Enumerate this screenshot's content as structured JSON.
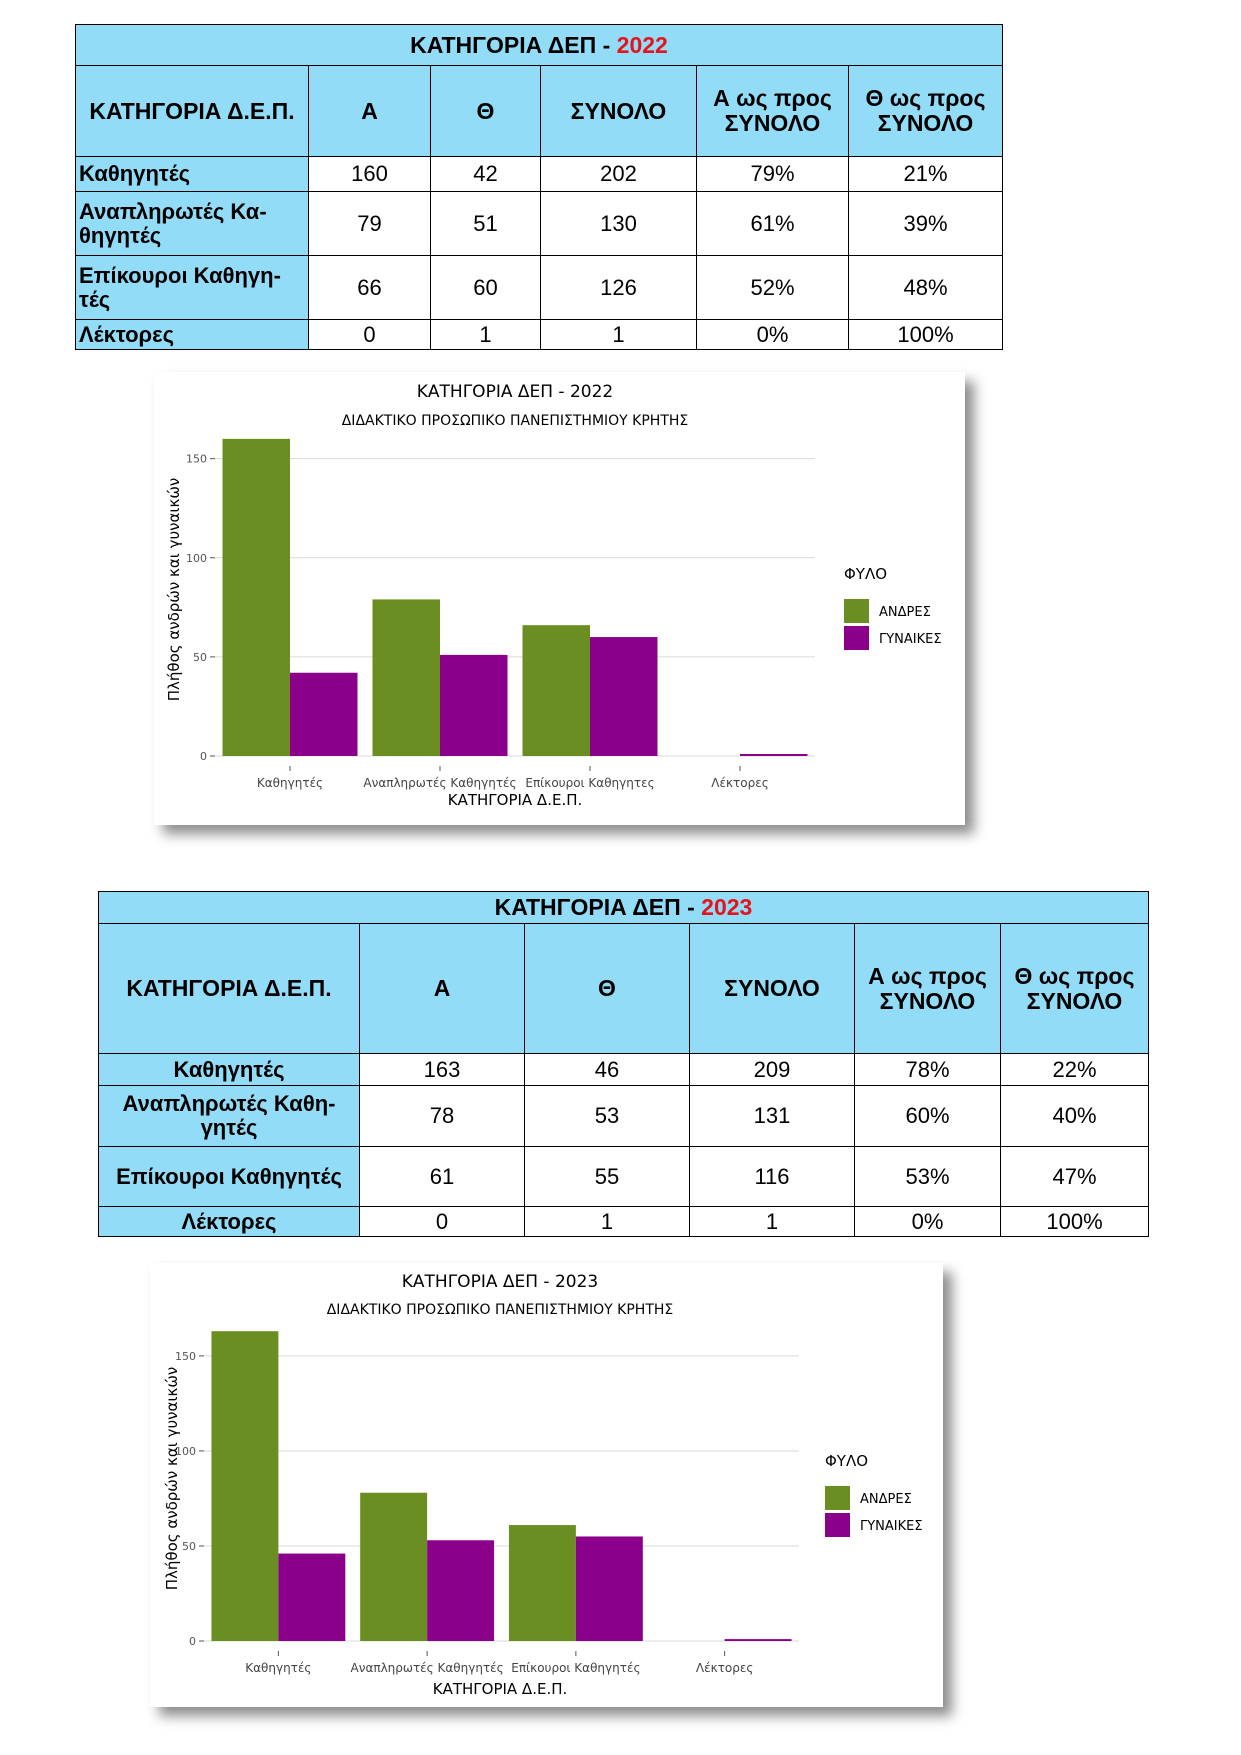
{
  "tables": [
    {
      "title_prefix": "ΚΑΤΗΓΟΡΙΑ ΔΕΠ  - ",
      "title_year": "2022",
      "year_color": "#e3141b",
      "header_bg": "#92dcf7",
      "headers": [
        "ΚΑΤΗΓΟΡΙΑ Δ.Ε.Π.",
        "Α",
        "Θ",
        "ΣΥΝΟΛΟ",
        "Α ως προς ΣΥΝΟΛΟ",
        "Θ ως προς ΣΥΝΟΛΟ"
      ],
      "rows": [
        {
          "category": "Καθηγητές",
          "a": "160",
          "th": "42",
          "total": "202",
          "a_pct": "79%",
          "th_pct": "21%"
        },
        {
          "category": "Αναπληρωτές Κα-θηγητές",
          "a": "79",
          "th": "51",
          "total": "130",
          "a_pct": "61%",
          "th_pct": "39%"
        },
        {
          "category": "Επίκουροι Καθηγη-τές",
          "a": "66",
          "th": "60",
          "total": "126",
          "a_pct": "52%",
          "th_pct": "48%"
        },
        {
          "category": "Λέκτορες",
          "a": "0",
          "th": "1",
          "total": "1",
          "a_pct": "0%",
          "th_pct": "100%"
        }
      ]
    },
    {
      "title_prefix": "ΚΑΤΗΓΟΡΙΑ ΔΕΠ  - ",
      "title_year": "2023",
      "year_color": "#e3141b",
      "header_bg": "#92dcf7",
      "headers": [
        "ΚΑΤΗΓΟΡΙΑ Δ.Ε.Π.",
        "Α",
        "Θ",
        "ΣΥΝΟΛΟ",
        "Α ως προς ΣΥΝΟΛΟ",
        "Θ ως προς ΣΥΝΟΛΟ"
      ],
      "rows": [
        {
          "category": "Καθηγητές",
          "a": "163",
          "th": "46",
          "total": "209",
          "a_pct": "78%",
          "th_pct": "22%"
        },
        {
          "category": "Αναπληρωτές Καθη-γητές",
          "a": "78",
          "th": "53",
          "total": "131",
          "a_pct": "60%",
          "th_pct": "40%"
        },
        {
          "category": "Επίκουροι Καθηγητές",
          "a": "61",
          "th": "55",
          "total": "116",
          "a_pct": "53%",
          "th_pct": "47%"
        },
        {
          "category": "Λέκτορες",
          "a": "0",
          "th": "1",
          "total": "1",
          "a_pct": "0%",
          "th_pct": "100%"
        }
      ]
    }
  ],
  "chart_data": [
    {
      "type": "bar",
      "title": "ΚΑΤΗΓΟΡΙΑ ΔΕΠ - 2022",
      "subtitle": "ΔΙΔΑΚΤΙΚΟ ΠΡΟΣΩΠΙΚΟ ΠΑΝΕΠΙΣΤΗΜΙΟΥ ΚΡΗΤΗΣ",
      "xlabel": "ΚΑΤΗΓΟΡΙΑ Δ.Ε.Π.",
      "ylabel": "Πλήθος ανδρών και γυναικών",
      "categories": [
        "Καθηγητές",
        "Αναπληρωτές  Καθηγητές",
        "Επίκουροι Καθηγητες",
        "Λέκτορες"
      ],
      "series": [
        {
          "name": "ΑΝΔΡΕΣ",
          "color": "#6b8e23",
          "values": [
            160,
            79,
            66,
            0
          ]
        },
        {
          "name": "ΓΥΝΑΙΚΕΣ",
          "color": "#8b008b",
          "values": [
            42,
            51,
            60,
            1
          ]
        }
      ],
      "yticks": [
        0,
        50,
        100,
        150
      ],
      "ylim": [
        0,
        168
      ],
      "legend_title": "ΦΥΛΟ",
      "legend_position": "right",
      "grid": true
    },
    {
      "type": "bar",
      "title": "ΚΑΤΗΓΟΡΙΑ ΔΕΠ - 2023",
      "subtitle": "ΔΙΔΑΚΤΙΚΟ ΠΡΟΣΩΠΙΚΟ ΠΑΝΕΠΙΣΤΗΜΙΟΥ ΚΡΗΤΗΣ",
      "xlabel": "ΚΑΤΗΓΟΡΙΑ Δ.Ε.Π.",
      "ylabel": "Πλήθος ανδρών και γυναικών",
      "categories": [
        "Καθηγητές",
        "Αναπληρωτές  Καθηγητές",
        "Επίκουροι Καθηγητές",
        "Λέκτορες"
      ],
      "series": [
        {
          "name": "ΑΝΔΡΕΣ",
          "color": "#6b8e23",
          "values": [
            163,
            78,
            61,
            0
          ]
        },
        {
          "name": "ΓΥΝΑΙΚΕΣ",
          "color": "#8b008b",
          "values": [
            46,
            53,
            55,
            1
          ]
        }
      ],
      "yticks": [
        0,
        50,
        100,
        150
      ],
      "ylim": [
        0,
        171
      ],
      "legend_title": "ΦΥΛΟ",
      "legend_position": "right",
      "grid": true
    }
  ]
}
